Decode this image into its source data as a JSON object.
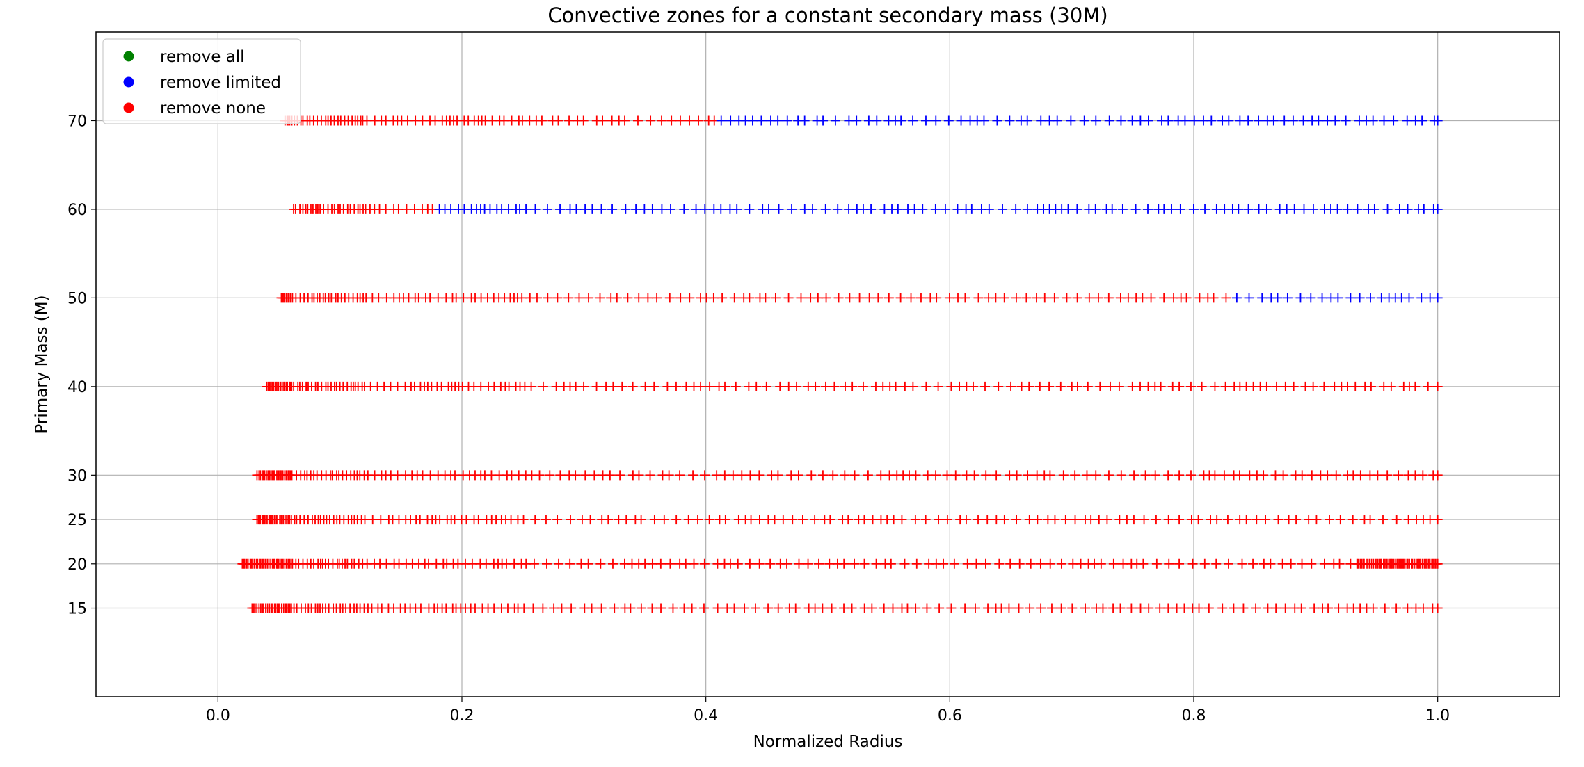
{
  "chart_data": {
    "type": "scatter",
    "title": "Convective zones for a constant secondary mass (30M)",
    "xlabel": "Normalized Radius",
    "ylabel": "Primary Mass (M)",
    "xlim": [
      -0.1,
      1.1
    ],
    "ylim": [
      5,
      80
    ],
    "xticks": [
      0.0,
      0.2,
      0.4,
      0.6,
      0.8,
      1.0
    ],
    "xtick_labels": [
      "0.0",
      "0.2",
      "0.4",
      "0.6",
      "0.8",
      "1.0"
    ],
    "yticks": [
      15,
      20,
      25,
      30,
      40,
      50,
      60,
      70
    ],
    "ytick_labels": [
      "15",
      "20",
      "25",
      "30",
      "40",
      "50",
      "60",
      "70"
    ],
    "grid": true,
    "marker": "+",
    "legend_position": "top-left",
    "legend": [
      {
        "label": "remove all",
        "color": "#008000"
      },
      {
        "label": "remove limited",
        "color": "#0000ff"
      },
      {
        "label": "remove none",
        "color": "#ff0000"
      }
    ],
    "series": [
      {
        "primary_mass": 15,
        "r_start": 0.028,
        "segments": [
          {
            "from": 0.028,
            "to": 1.0,
            "color": "#ff0000"
          }
        ]
      },
      {
        "primary_mass": 20,
        "r_start": 0.02,
        "segments": [
          {
            "from": 0.02,
            "to": 1.0,
            "color": "#ff0000"
          }
        ]
      },
      {
        "primary_mass": 25,
        "r_start": 0.032,
        "segments": [
          {
            "from": 0.032,
            "to": 1.0,
            "color": "#ff0000"
          }
        ]
      },
      {
        "primary_mass": 30,
        "r_start": 0.032,
        "segments": [
          {
            "from": 0.032,
            "to": 1.0,
            "color": "#ff0000"
          }
        ]
      },
      {
        "primary_mass": 40,
        "r_start": 0.04,
        "segments": [
          {
            "from": 0.04,
            "to": 1.0,
            "color": "#ff0000"
          }
        ]
      },
      {
        "primary_mass": 50,
        "r_start": 0.052,
        "segments": [
          {
            "from": 0.052,
            "to": 0.835,
            "color": "#ff0000"
          },
          {
            "from": 0.835,
            "to": 1.0,
            "color": "#0000ff"
          }
        ]
      },
      {
        "primary_mass": 60,
        "r_start": 0.062,
        "segments": [
          {
            "from": 0.062,
            "to": 0.18,
            "color": "#ff0000"
          },
          {
            "from": 0.18,
            "to": 1.0,
            "color": "#0000ff"
          }
        ]
      },
      {
        "primary_mass": 70,
        "r_start": 0.055,
        "segments": [
          {
            "from": 0.055,
            "to": 0.41,
            "color": "#ff0000"
          },
          {
            "from": 0.41,
            "to": 1.0,
            "color": "#0000ff"
          }
        ]
      }
    ]
  }
}
